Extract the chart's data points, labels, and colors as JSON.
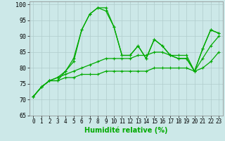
{
  "xlabel": "Humidité relative (%)",
  "bg_color": "#cce8e8",
  "grid_color": "#b0cccc",
  "line_color": "#00aa00",
  "ylim": [
    65,
    101
  ],
  "xlim": [
    -0.5,
    23.5
  ],
  "yticks": [
    65,
    70,
    75,
    80,
    85,
    90,
    95,
    100
  ],
  "xticks": [
    0,
    1,
    2,
    3,
    4,
    5,
    6,
    7,
    8,
    9,
    10,
    11,
    12,
    13,
    14,
    15,
    16,
    17,
    18,
    19,
    20,
    21,
    22,
    23
  ],
  "series": [
    [
      71,
      74,
      76,
      76,
      79,
      83,
      92,
      97,
      99,
      99,
      93,
      84,
      84,
      87,
      83,
      89,
      87,
      84,
      83,
      83,
      79,
      86,
      92,
      91
    ],
    [
      71,
      74,
      76,
      77,
      79,
      82,
      92,
      97,
      99,
      98,
      93,
      84,
      84,
      87,
      83,
      89,
      87,
      84,
      83,
      83,
      79,
      86,
      92,
      91
    ],
    [
      71,
      74,
      76,
      77,
      78,
      79,
      80,
      81,
      82,
      83,
      83,
      83,
      83,
      84,
      84,
      85,
      85,
      84,
      84,
      84,
      79,
      83,
      87,
      90
    ],
    [
      71,
      74,
      76,
      76,
      77,
      77,
      78,
      78,
      78,
      79,
      79,
      79,
      79,
      79,
      79,
      80,
      80,
      80,
      80,
      80,
      79,
      80,
      82,
      85
    ]
  ],
  "marker": "+",
  "markersize": 3.5,
  "linewidth": 0.9,
  "xlabel_fontsize": 7,
  "tick_fontsize": 5.5,
  "ytick_fontsize": 6
}
